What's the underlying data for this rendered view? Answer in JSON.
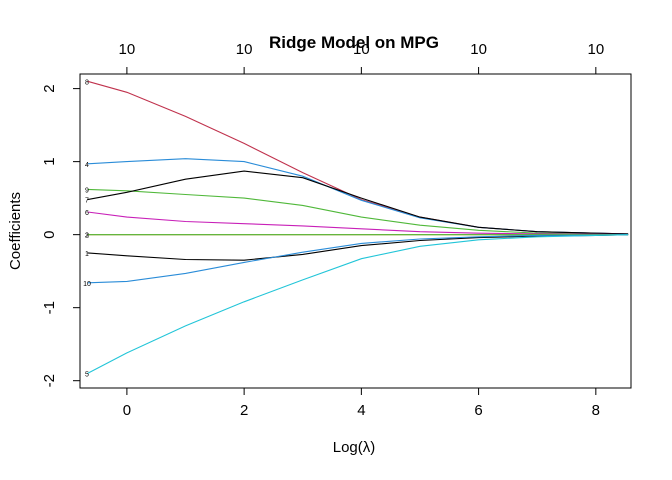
{
  "chart_data": {
    "type": "line",
    "title": "Ridge Model on MPG",
    "xlabel": "Log(λ)",
    "ylabel": "Coefficients",
    "xlim": [
      -0.8,
      8.6
    ],
    "ylim": [
      -2.1,
      2.2
    ],
    "x_ticks": [
      0,
      2,
      4,
      6,
      8
    ],
    "x_tick_labels": [
      "0",
      "2",
      "4",
      "6",
      "8"
    ],
    "y_ticks": [
      -2,
      -1,
      0,
      1,
      2
    ],
    "y_tick_labels": [
      "-2",
      "-1",
      "0",
      "1",
      "2"
    ],
    "top_axis": {
      "ticks": [
        0,
        2,
        4,
        6,
        8
      ],
      "labels": [
        "10",
        "10",
        "10",
        "10",
        "10"
      ]
    },
    "grid": false,
    "x_points": [
      -0.67,
      0,
      1,
      2,
      3,
      4,
      5,
      6,
      7,
      8,
      8.55
    ],
    "series": [
      {
        "label": "8",
        "color": "#c0324d",
        "values": [
          2.1,
          1.95,
          1.62,
          1.25,
          0.85,
          0.48,
          0.24,
          0.1,
          0.04,
          0.02,
          0.01
        ]
      },
      {
        "label": "4",
        "color": "#2a8cd8",
        "values": [
          0.97,
          1.0,
          1.04,
          1.0,
          0.8,
          0.47,
          0.23,
          0.1,
          0.04,
          0.02,
          0.01
        ]
      },
      {
        "label": "9",
        "color": "#50b83a",
        "values": [
          0.62,
          0.6,
          0.55,
          0.5,
          0.4,
          0.24,
          0.13,
          0.06,
          0.02,
          0.01,
          0.005
        ]
      },
      {
        "label": "7",
        "color": "#000000",
        "values": [
          0.48,
          0.58,
          0.76,
          0.87,
          0.78,
          0.5,
          0.24,
          0.1,
          0.04,
          0.02,
          0.01
        ]
      },
      {
        "label": "6",
        "color": "#c820b8",
        "values": [
          0.31,
          0.24,
          0.18,
          0.15,
          0.12,
          0.08,
          0.04,
          0.02,
          0.01,
          0.005,
          0.002
        ]
      },
      {
        "label": "3",
        "color": "#e08a20",
        "values": [
          0.0,
          0.0,
          0.0,
          0.0,
          0.0,
          0.0,
          0.0,
          0.0,
          0.0,
          0.0,
          0.0
        ]
      },
      {
        "label": "2",
        "color": "#50b83a",
        "values": [
          0.0,
          0.0,
          0.0,
          0.0,
          0.0,
          0.0,
          0.0,
          0.0,
          0.0,
          0.0,
          0.0
        ]
      },
      {
        "label": "1",
        "color": "#000000",
        "values": [
          -0.25,
          -0.29,
          -0.34,
          -0.35,
          -0.27,
          -0.15,
          -0.08,
          -0.04,
          -0.02,
          -0.01,
          0.0
        ]
      },
      {
        "label": "10",
        "color": "#2a8cd8",
        "values": [
          -0.66,
          -0.64,
          -0.53,
          -0.38,
          -0.24,
          -0.12,
          -0.06,
          -0.03,
          -0.01,
          -0.005,
          0.0
        ]
      },
      {
        "label": "5",
        "color": "#22c5d8",
        "values": [
          -1.9,
          -1.62,
          -1.25,
          -0.92,
          -0.62,
          -0.33,
          -0.16,
          -0.07,
          -0.03,
          -0.01,
          0.0
        ]
      }
    ]
  }
}
